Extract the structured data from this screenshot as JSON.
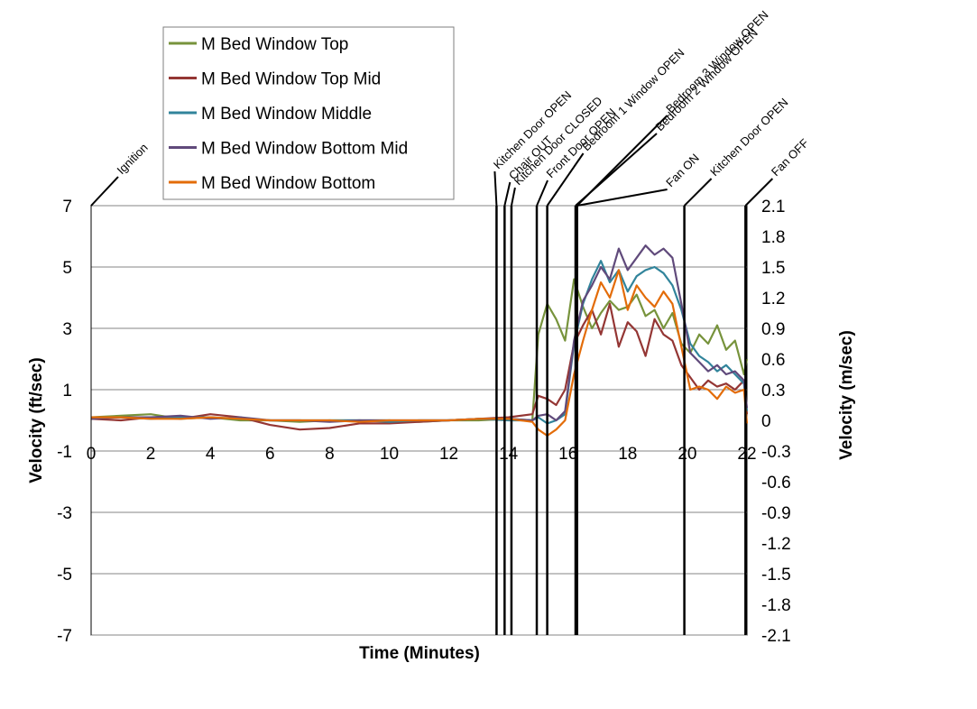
{
  "chart_data": {
    "type": "line",
    "xlabel": "Time (Minutes)",
    "ylabel_left": "Velocity (ft/sec)",
    "ylabel_right": "Velocity (m/sec)",
    "xlim": [
      0,
      22
    ],
    "ylim_left": [
      -7,
      7
    ],
    "ylim_right": [
      -2.1,
      2.1
    ],
    "x_ticks": [
      "0",
      "2",
      "4",
      "6",
      "8",
      "10",
      "12",
      "14",
      "16",
      "18",
      "20",
      "22"
    ],
    "y_ticks_left": [
      "7",
      "5",
      "3",
      "1",
      "-1",
      "-3",
      "-5",
      "-7"
    ],
    "y_ticks_right": [
      "2.1",
      "1.8",
      "1.5",
      "1.2",
      "0.9",
      "0.6",
      "0.3",
      "0",
      "-0.3",
      "-0.6",
      "-0.9",
      "-1.2",
      "-1.5",
      "-1.8",
      "-2.1"
    ],
    "grid": "horizontal",
    "legend_position": "top-left",
    "events": [
      {
        "time": 0.0,
        "label": "Ignition"
      },
      {
        "time": 13.6,
        "label": "Kitchen Door OPEN"
      },
      {
        "time": 13.87,
        "label": "Chair OUT"
      },
      {
        "time": 14.1,
        "label": "Kitchen Door CLOSED"
      },
      {
        "time": 14.95,
        "label": "Front Door OPEN"
      },
      {
        "time": 15.3,
        "label": "Bedroom 1 Window OPEN"
      },
      {
        "time": 16.25,
        "label": "Bedroom 2 Window OPEN"
      },
      {
        "time": 16.3,
        "label": "Bedroom 3 Window OPEN"
      },
      {
        "time": 16.3,
        "label": "Fan ON"
      },
      {
        "time": 19.9,
        "label": "Kitchen Door OPEN"
      },
      {
        "time": 21.95,
        "label": "Fan OFF"
      }
    ],
    "series": [
      {
        "name": "M Bed Window Top",
        "color": "#77933C",
        "x": [
          0,
          1,
          2,
          3,
          4,
          5,
          6,
          7,
          8,
          9,
          10,
          11,
          12,
          13,
          14,
          14.8,
          15,
          15.3,
          15.6,
          15.9,
          16.2,
          16.5,
          16.8,
          17.1,
          17.4,
          17.7,
          18,
          18.3,
          18.6,
          18.9,
          19.2,
          19.5,
          19.8,
          20.1,
          20.4,
          20.7,
          21,
          21.3,
          21.6,
          21.9,
          22
        ],
        "y": [
          0.1,
          0.15,
          0.2,
          0.05,
          0.1,
          0,
          0,
          -0.05,
          0,
          0,
          0,
          -0.05,
          0,
          0,
          0.05,
          0,
          2.8,
          3.8,
          3.3,
          2.6,
          4.6,
          3.7,
          3.0,
          3.5,
          3.9,
          3.6,
          3.7,
          4.1,
          3.4,
          3.6,
          3.0,
          3.5,
          2.5,
          2.2,
          2.8,
          2.5,
          3.1,
          2.3,
          2.6,
          1.5,
          2.0
        ]
      },
      {
        "name": "M Bed Window Top Mid",
        "color": "#943634",
        "x": [
          0,
          1,
          2,
          3,
          4,
          5,
          6,
          7,
          8,
          9,
          10,
          11,
          12,
          13,
          14,
          14.8,
          15,
          15.3,
          15.6,
          15.9,
          16.2,
          16.5,
          16.8,
          17.1,
          17.4,
          17.7,
          18,
          18.3,
          18.6,
          18.9,
          19.2,
          19.5,
          19.8,
          20.1,
          20.4,
          20.7,
          21,
          21.3,
          21.6,
          21.9,
          22
        ],
        "y": [
          0.05,
          0,
          0.1,
          0.05,
          0.2,
          0.1,
          -0.15,
          -0.3,
          -0.25,
          -0.1,
          -0.1,
          -0.05,
          0,
          0.05,
          0.1,
          0.2,
          0.8,
          0.7,
          0.5,
          1.0,
          2.5,
          3.1,
          3.6,
          2.8,
          3.8,
          2.4,
          3.2,
          2.9,
          2.1,
          3.3,
          2.8,
          2.6,
          1.8,
          1.4,
          1.0,
          1.3,
          1.1,
          1.2,
          1.0,
          1.3,
          0.2
        ]
      },
      {
        "name": "M Bed Window Middle",
        "color": "#31849B",
        "x": [
          0,
          1,
          2,
          3,
          4,
          5,
          6,
          7,
          8,
          9,
          10,
          11,
          12,
          13,
          14,
          14.8,
          15,
          15.3,
          15.6,
          15.9,
          16.2,
          16.5,
          16.8,
          17.1,
          17.4,
          17.7,
          18,
          18.3,
          18.6,
          18.9,
          19.2,
          19.5,
          19.8,
          20.1,
          20.4,
          20.7,
          21,
          21.3,
          21.6,
          21.9,
          22
        ],
        "y": [
          0.1,
          0.1,
          0.05,
          0.1,
          0.1,
          0.05,
          0,
          0,
          0,
          0,
          -0.05,
          0,
          0,
          0.05,
          0,
          0,
          0.1,
          -0.1,
          0,
          0.2,
          2.5,
          3.8,
          4.6,
          5.2,
          4.5,
          4.9,
          4.2,
          4.7,
          4.9,
          5.0,
          4.8,
          4.4,
          3.6,
          2.5,
          2.1,
          1.9,
          1.6,
          1.8,
          1.5,
          1.2,
          0.3
        ]
      },
      {
        "name": "M Bed Window Bottom  Mid",
        "color": "#604A7B",
        "x": [
          0,
          1,
          2,
          3,
          4,
          5,
          6,
          7,
          8,
          9,
          10,
          11,
          12,
          13,
          14,
          14.8,
          15,
          15.3,
          15.6,
          15.9,
          16.2,
          16.5,
          16.8,
          17.1,
          17.4,
          17.7,
          18,
          18.3,
          18.6,
          18.9,
          19.2,
          19.5,
          19.8,
          20.1,
          20.4,
          20.7,
          21,
          21.3,
          21.6,
          21.9,
          22
        ],
        "y": [
          0.05,
          0.1,
          0.1,
          0.15,
          0.05,
          0.1,
          0,
          0,
          -0.05,
          0,
          0,
          0,
          0,
          0.05,
          0.05,
          0,
          0.15,
          0.2,
          0,
          0.3,
          2.6,
          3.9,
          4.4,
          5.0,
          4.6,
          5.6,
          4.9,
          5.3,
          5.7,
          5.4,
          5.6,
          5.3,
          3.8,
          2.2,
          1.9,
          1.6,
          1.8,
          1.5,
          1.6,
          1.3,
          0.4
        ]
      },
      {
        "name": "M Bed Window Bottom",
        "color": "#E36C09",
        "x": [
          0,
          1,
          2,
          3,
          4,
          5,
          6,
          7,
          8,
          9,
          10,
          11,
          12,
          13,
          14,
          14.8,
          15,
          15.3,
          15.6,
          15.9,
          16.2,
          16.5,
          16.8,
          17.1,
          17.4,
          17.7,
          18,
          18.3,
          18.6,
          18.9,
          19.2,
          19.5,
          19.8,
          20.1,
          20.4,
          20.7,
          21,
          21.3,
          21.6,
          21.9,
          22
        ],
        "y": [
          0.1,
          0.1,
          0.05,
          0.05,
          0.1,
          0.05,
          0,
          0,
          0,
          -0.05,
          0,
          0,
          0,
          0.05,
          0.05,
          -0.05,
          -0.3,
          -0.5,
          -0.3,
          0.0,
          1.5,
          2.6,
          3.6,
          4.5,
          4.0,
          4.9,
          3.6,
          4.4,
          4.0,
          3.7,
          4.2,
          3.8,
          2.4,
          1.0,
          1.1,
          1.0,
          0.7,
          1.1,
          0.9,
          1.0,
          -0.1
        ]
      }
    ]
  }
}
